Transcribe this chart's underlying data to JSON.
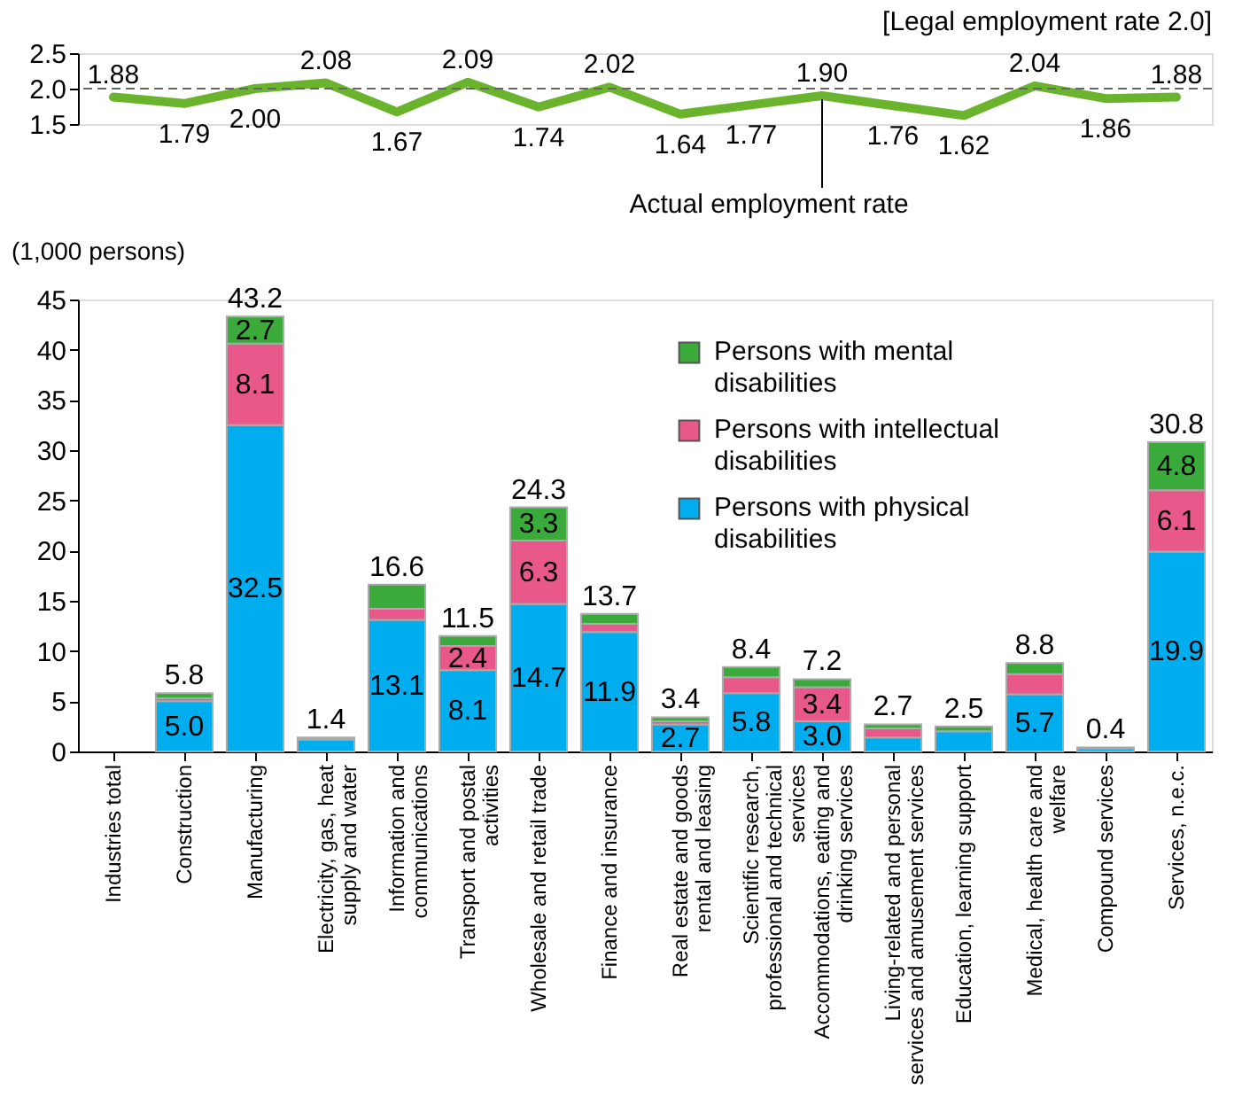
{
  "chart_data": [
    {
      "type": "line",
      "categories": [
        "Industries total",
        "Construction",
        "Manufacturing",
        "Electricity, gas, heat supply and water",
        "Information and communications",
        "Transport and postal activities",
        "Wholesale and retail trade",
        "Finance and insurance",
        "Real estate and goods rental and leasing",
        "Scientific research, professional and technical services",
        "Accommodations, eating and drinking services",
        "Living-related and personal services and amusement services",
        "Education, learning support",
        "Medical, health care and welfare",
        "Compound services",
        "Services, n.e.c."
      ],
      "series": [
        {
          "color": "#6ab42d",
          "values": [
            1.88,
            1.79,
            2.0,
            2.08,
            1.67,
            2.09,
            1.74,
            2.02,
            1.64,
            1.77,
            1.9,
            1.76,
            1.62,
            2.04,
            1.86,
            1.88
          ],
          "value_labels": [
            "1.88",
            "1.79",
            "2.00",
            "2.08",
            "1.67",
            "2.09",
            "1.74",
            "2.02",
            "1.64",
            "1.77",
            "1.90",
            "1.76",
            "1.62",
            "2.04",
            "1.86",
            "1.88"
          ]
        }
      ],
      "ylim": [
        1.5,
        2.5
      ],
      "yticks": [
        {
          "value": 1.5,
          "label": "1.5"
        },
        {
          "value": 2.0,
          "label": "2.0"
        },
        {
          "value": 2.5,
          "label": "2.5"
        }
      ],
      "tick_labels": "y",
      "line_style": "solid",
      "ref_lines": [
        {
          "axis": "y",
          "value": 2.0,
          "label": "[Legal employment rate 2.0]",
          "color": "#666666",
          "line_style": "dashed"
        }
      ],
      "annotations": [
        {
          "text": "Actual employment rate",
          "x": "Accommodations, eating and drinking services",
          "y": 1.85
        }
      ]
    },
    {
      "type": "bar",
      "stacked": true,
      "ylabel": "(1,000 persons)",
      "categories": [
        "Industries total",
        "Construction",
        "Manufacturing",
        "Electricity, gas, heat supply and water",
        "Information and communications",
        "Transport and postal activities",
        "Wholesale and retail trade",
        "Finance and insurance",
        "Real estate and goods rental and leasing",
        "Scientific research, professional and technical services",
        "Accommodations, eating and drinking services",
        "Living-related and personal services and amusement services",
        "Education, learning support",
        "Medical, health care and welfare",
        "Compound services",
        "Services, n.e.c."
      ],
      "series": [
        {
          "name": "Persons with physical disabilities",
          "color": "#00aeef",
          "values": [
            null,
            5.0,
            32.5,
            1.2,
            13.1,
            8.1,
            14.7,
            11.9,
            2.7,
            5.8,
            3.0,
            1.4,
            2.0,
            5.7,
            0.3,
            19.9
          ],
          "value_labels": [
            null,
            "5.0",
            "32.5",
            null,
            "13.1",
            "8.1",
            "14.7",
            "11.9",
            "2.7",
            "5.8",
            "3.0",
            null,
            null,
            "5.7",
            null,
            "19.9"
          ]
        },
        {
          "name": "Persons with intellectual disabilities",
          "color": "#e8588a",
          "values": [
            null,
            0.3,
            8.1,
            0.1,
            1.1,
            2.4,
            6.3,
            0.8,
            0.3,
            1.6,
            3.4,
            0.9,
            null,
            2.0,
            0.1,
            6.1
          ],
          "value_labels": [
            null,
            null,
            "8.1",
            null,
            null,
            "2.4",
            "6.3",
            null,
            null,
            null,
            "3.4",
            null,
            null,
            null,
            null,
            "6.1"
          ]
        },
        {
          "name": "Persons with mental disabilities",
          "color": "#3aab3a",
          "values": [
            null,
            0.5,
            2.7,
            0.1,
            2.4,
            1.0,
            3.3,
            1.0,
            0.4,
            1.0,
            0.8,
            0.4,
            0.5,
            1.1,
            null,
            4.8
          ],
          "value_labels": [
            null,
            null,
            "2.7",
            null,
            null,
            null,
            "3.3",
            null,
            null,
            null,
            null,
            null,
            null,
            null,
            null,
            "4.8"
          ]
        }
      ],
      "totals": [
        null,
        "5.8",
        "43.2",
        "1.4",
        "16.6",
        "11.5",
        "24.3",
        "13.7",
        "3.4",
        "8.4",
        "7.2",
        "2.7",
        "2.5",
        "8.8",
        "0.4",
        "30.8"
      ],
      "ylim": [
        0,
        45
      ],
      "yticks": [
        0,
        5,
        10,
        15,
        20,
        25,
        30,
        35,
        40,
        45
      ],
      "legend": "top right"
    }
  ]
}
